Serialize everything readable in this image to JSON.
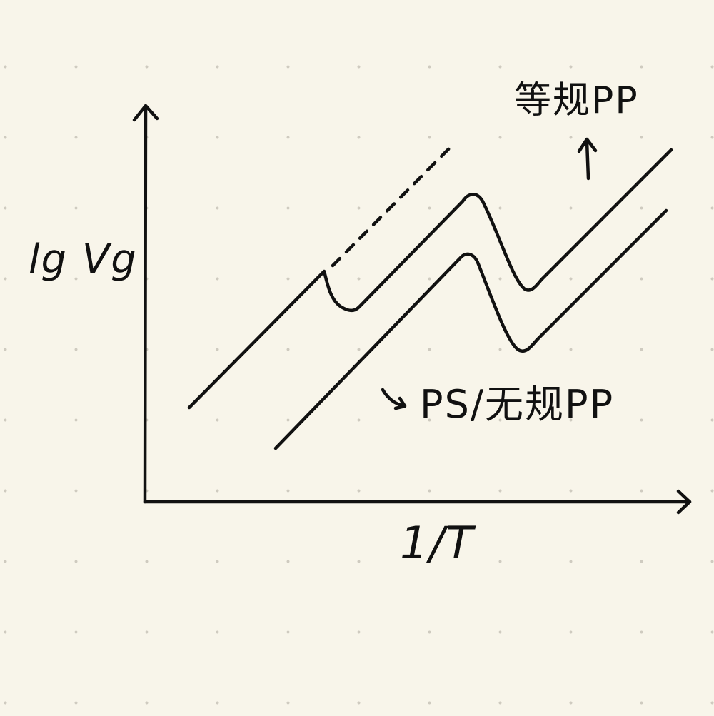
{
  "diagram": {
    "axes": {
      "y_label": "lg Vg",
      "x_label": "1/T"
    },
    "curves": [
      {
        "label": "等规PP",
        "pointer": "up-arrow"
      },
      {
        "label": "PS/无规PP",
        "pointer": "curved-arrow"
      }
    ],
    "ink_color": "#111111",
    "paper_color": "#f8f5ea"
  }
}
